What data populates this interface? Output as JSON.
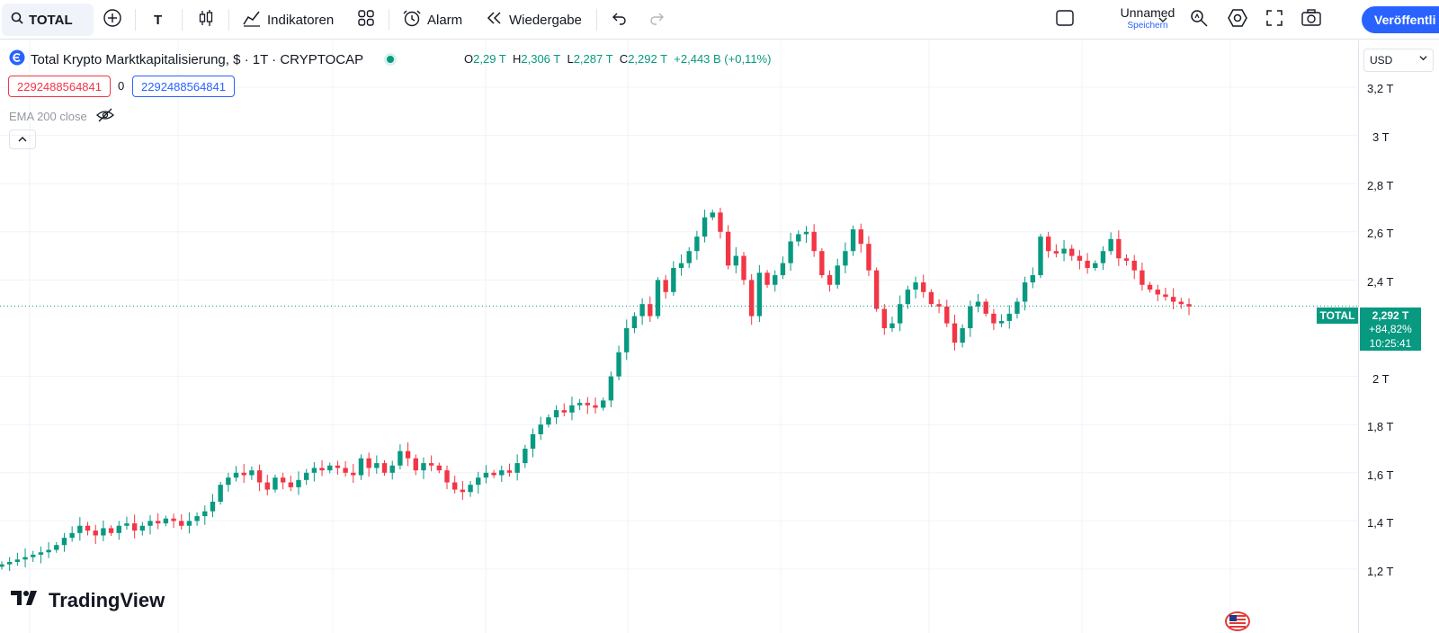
{
  "toolbar": {
    "symbol": "TOTAL",
    "interval": "T",
    "indicators_label": "Indikatoren",
    "alarm_label": "Alarm",
    "replay_label": "Wiedergabe",
    "layout_name": "Unnamed",
    "save_label": "Speichern",
    "publish_label": "Veröffentli"
  },
  "legend": {
    "title": "Total Krypto Marktkapitalisierung, $ · 1T · CRYPTOCAP",
    "open_label": "O",
    "open": "2,29 T",
    "high_label": "H",
    "high": "2,306 T",
    "low_label": "L",
    "low": "2,287 T",
    "close_label": "C",
    "close": "2,292 T",
    "change": "+2,443 B (+0,11%)",
    "input_left": "2292488564841",
    "input_mid": "0",
    "input_right": "2292488564841",
    "indicator": "EMA 200 close"
  },
  "price_axis": {
    "currency": "USD",
    "ticks": [
      "3,2 T",
      "3 T",
      "2,8 T",
      "2,6 T",
      "2,4 T",
      "2 T",
      "1,8 T",
      "1,6 T",
      "1,4 T",
      "1,2 T"
    ]
  },
  "last_price": {
    "symbol_tag": "TOTAL",
    "price": "2,292 T",
    "change_pct": "+84,82%",
    "countdown": "10:25:41"
  },
  "branding": {
    "logo_text": "TradingView"
  },
  "colors": {
    "up": "#089981",
    "down": "#f23645",
    "accent": "#2962ff",
    "grid": "#f0f3fa"
  },
  "chart_data": {
    "type": "candlestick",
    "y_unit": "T USD",
    "ylim": [
      1.1,
      3.3
    ],
    "y_ticks": [
      1.2,
      1.4,
      1.6,
      1.8,
      2.0,
      2.4,
      2.6,
      2.8,
      3.0,
      3.2
    ],
    "last_price": 2.292,
    "closes": [
      1.22,
      1.23,
      1.24,
      1.25,
      1.26,
      1.27,
      1.28,
      1.3,
      1.33,
      1.35,
      1.38,
      1.36,
      1.34,
      1.37,
      1.35,
      1.38,
      1.39,
      1.36,
      1.38,
      1.4,
      1.39,
      1.41,
      1.4,
      1.38,
      1.4,
      1.42,
      1.44,
      1.48,
      1.55,
      1.58,
      1.6,
      1.59,
      1.61,
      1.56,
      1.53,
      1.58,
      1.56,
      1.54,
      1.57,
      1.6,
      1.62,
      1.61,
      1.63,
      1.62,
      1.6,
      1.59,
      1.66,
      1.62,
      1.64,
      1.6,
      1.63,
      1.69,
      1.66,
      1.61,
      1.64,
      1.63,
      1.61,
      1.56,
      1.53,
      1.52,
      1.55,
      1.58,
      1.6,
      1.59,
      1.61,
      1.6,
      1.64,
      1.7,
      1.76,
      1.8,
      1.83,
      1.86,
      1.85,
      1.88,
      1.89,
      1.88,
      1.87,
      1.9,
      2.0,
      2.1,
      2.2,
      2.25,
      2.3,
      2.25,
      2.4,
      2.35,
      2.45,
      2.47,
      2.52,
      2.58,
      2.66,
      2.68,
      2.6,
      2.46,
      2.5,
      2.4,
      2.25,
      2.43,
      2.38,
      2.42,
      2.47,
      2.56,
      2.59,
      2.6,
      2.52,
      2.42,
      2.38,
      2.46,
      2.52,
      2.61,
      2.55,
      2.44,
      2.28,
      2.2,
      2.22,
      2.3,
      2.36,
      2.39,
      2.35,
      2.3,
      2.29,
      2.22,
      2.14,
      2.2,
      2.29,
      2.31,
      2.26,
      2.22,
      2.23,
      2.26,
      2.31,
      2.39,
      2.42,
      2.58,
      2.52,
      2.51,
      2.53,
      2.5,
      2.48,
      2.45,
      2.47,
      2.52,
      2.57,
      2.49,
      2.48,
      2.44,
      2.38,
      2.36,
      2.34,
      2.33,
      2.31,
      2.3,
      2.29
    ]
  }
}
